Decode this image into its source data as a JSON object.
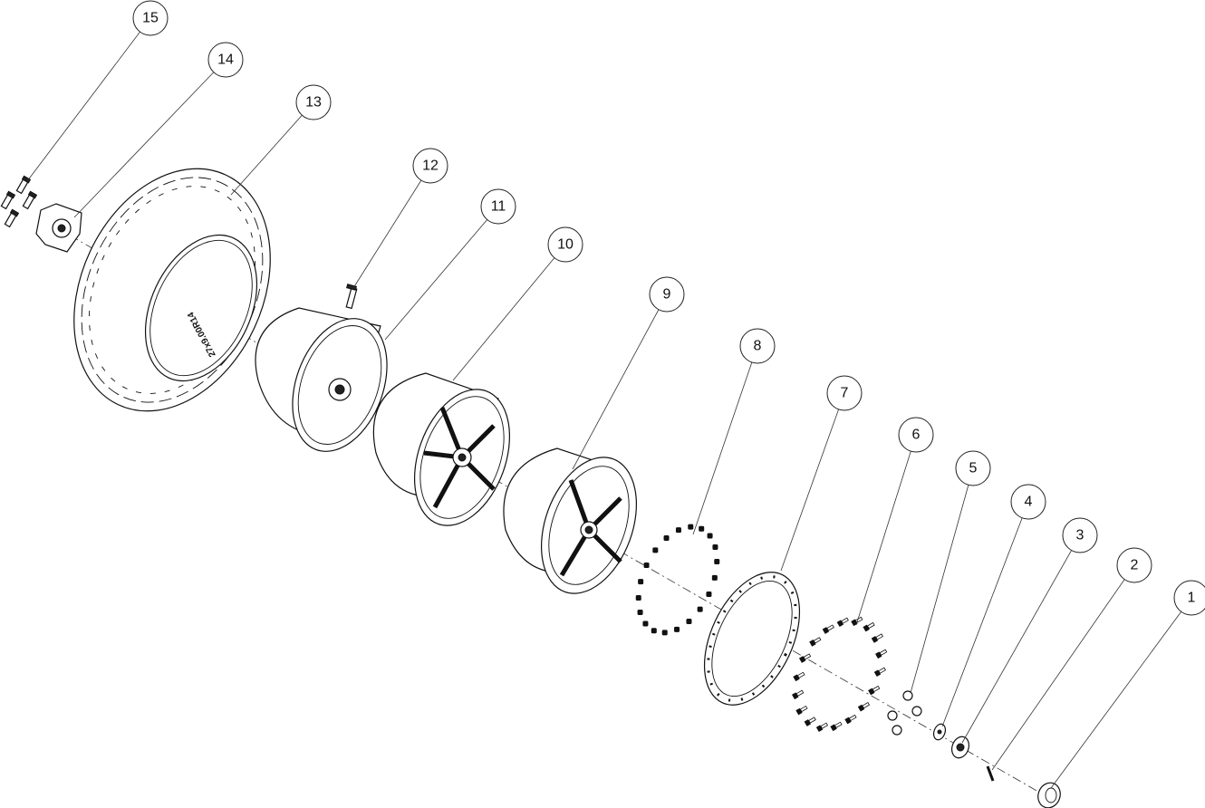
{
  "diagram": {
    "callouts": [
      "1",
      "2",
      "3",
      "4",
      "5",
      "6",
      "7",
      "8",
      "9",
      "10",
      "11",
      "12",
      "13",
      "14",
      "15"
    ],
    "tire_marking": "27x9.00R14",
    "line_color": "#111111",
    "background": "#ffffff"
  }
}
